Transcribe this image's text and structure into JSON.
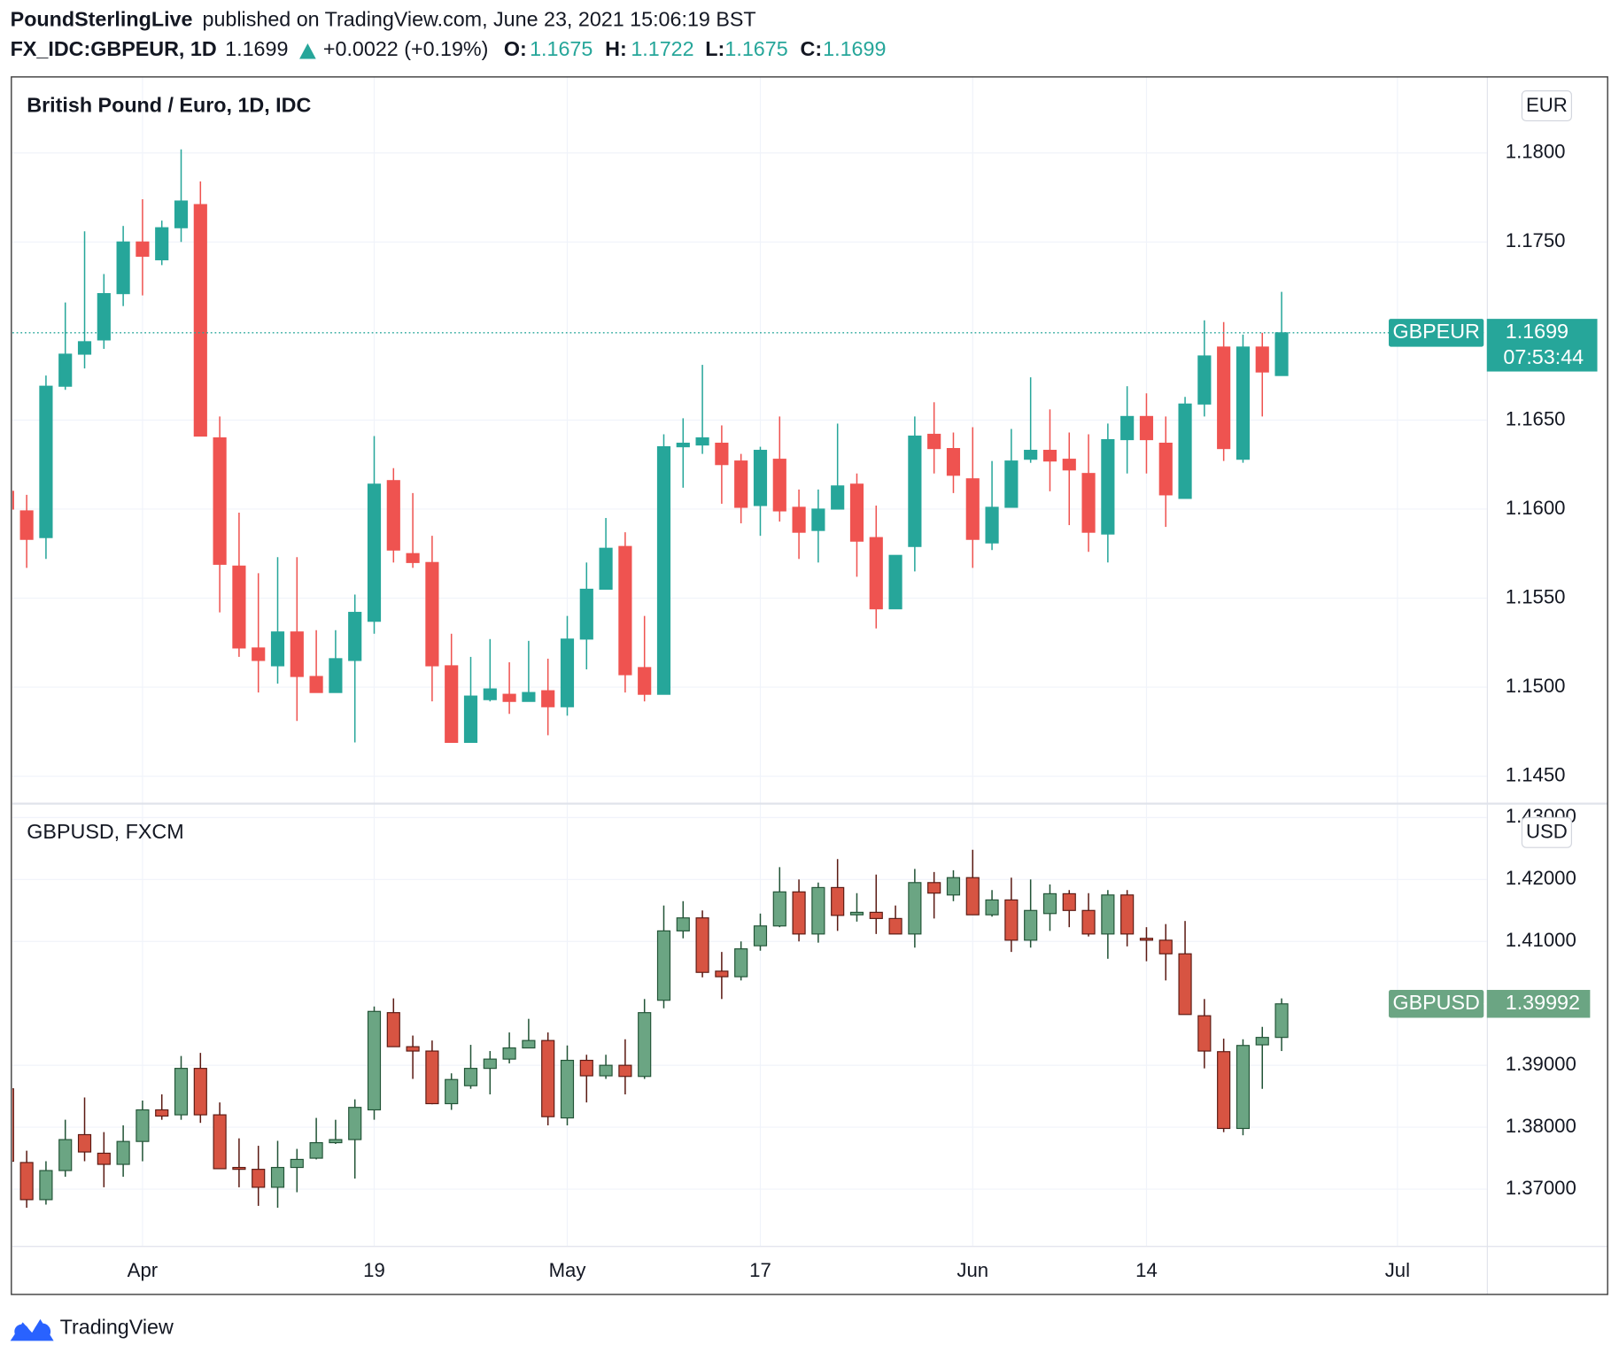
{
  "header": {
    "author": "PoundSterlingLive",
    "published": "published on TradingView.com, June 23, 2021 15:06:19 BST",
    "symbol": "FX_IDC:GBPEUR, 1D",
    "last": 1.1699,
    "change": "+0.0022 (+0.19%)",
    "ohlc": [
      {
        "label": "O:",
        "value": 1.1675
      },
      {
        "label": "H:",
        "value": 1.1722
      },
      {
        "label": "L:",
        "value": 1.1675
      },
      {
        "label": "C:",
        "value": 1.1699
      }
    ]
  },
  "chart_data": [
    {
      "type": "candlestick",
      "title": "British Pound / Euro, 1D, IDC",
      "currency": "EUR",
      "symbol": "GBPEUR",
      "last_value": 1.1699,
      "countdown": "07:53:44",
      "price_line": true,
      "grid": true,
      "up_color": "#26a69a",
      "down_color": "#ef5350",
      "border_up_color": "#26a69a",
      "border_down_color": "#ef5350",
      "xlim": [
        0.26,
        76.63
      ],
      "ylim": [
        1.14349,
        1.18424
      ],
      "yticks": [
        {
          "value": 1.145,
          "label": "1.1450"
        },
        {
          "value": 1.15,
          "label": "1.1500"
        },
        {
          "value": 1.155,
          "label": "1.1550"
        },
        {
          "value": 1.16,
          "label": "1.1600"
        },
        {
          "value": 1.165,
          "label": "1.1650"
        },
        {
          "value": 1.175,
          "label": "1.1750"
        },
        {
          "value": 1.18,
          "label": "1.1800"
        }
      ],
      "open": [
        1.161,
        1.1599,
        1.1584,
        1.1669,
        1.1687,
        1.1695,
        1.1721,
        1.175,
        1.174,
        1.1758,
        1.1771,
        1.164,
        1.1568,
        1.1522,
        1.1512,
        1.1531,
        1.1506,
        1.1497,
        1.1515,
        1.1537,
        1.1616,
        1.1575,
        1.157,
        1.1512,
        1.1469,
        1.1493,
        1.1496,
        1.1492,
        1.1498,
        1.1489,
        1.1527,
        1.1555,
        1.1579,
        1.1511,
        1.1496,
        1.1635,
        1.1636,
        1.1637,
        1.1627,
        1.1602,
        1.1628,
        1.1601,
        1.1588,
        1.16,
        1.1614,
        1.1584,
        1.1544,
        1.1579,
        1.1642,
        1.1634,
        1.1617,
        1.1581,
        1.1601,
        1.1628,
        1.1633,
        1.1628,
        1.162,
        1.1586,
        1.1639,
        1.1652,
        1.1637,
        1.1606,
        1.1659,
        1.1691,
        1.1628,
        1.1691,
        1.1675
      ],
      "high": [
        1.1615,
        1.1608,
        1.1675,
        1.1716,
        1.1756,
        1.1732,
        1.1759,
        1.1774,
        1.1762,
        1.1802,
        1.1784,
        1.1652,
        1.1598,
        1.1564,
        1.1573,
        1.1573,
        1.1532,
        1.1532,
        1.1552,
        1.1641,
        1.1623,
        1.1609,
        1.1585,
        1.153,
        1.1517,
        1.1527,
        1.1514,
        1.1526,
        1.1516,
        1.154,
        1.157,
        1.1595,
        1.1587,
        1.154,
        1.1642,
        1.1651,
        1.1681,
        1.1647,
        1.1631,
        1.1635,
        1.1652,
        1.1611,
        1.1611,
        1.1648,
        1.162,
        1.1602,
        1.1574,
        1.1652,
        1.166,
        1.1643,
        1.1646,
        1.1627,
        1.1645,
        1.1674,
        1.1656,
        1.1643,
        1.1642,
        1.1648,
        1.1669,
        1.1665,
        1.1652,
        1.1663,
        1.1706,
        1.1705,
        1.1698,
        1.1699,
        1.1722
      ],
      "low": [
        1.1595,
        1.1567,
        1.1572,
        1.1667,
        1.1679,
        1.169,
        1.1714,
        1.172,
        1.1737,
        1.175,
        1.1641,
        1.1542,
        1.1517,
        1.1497,
        1.1502,
        1.1481,
        1.1497,
        1.1497,
        1.1469,
        1.153,
        1.157,
        1.1567,
        1.1492,
        1.1469,
        1.1469,
        1.1492,
        1.1485,
        1.1492,
        1.1473,
        1.1484,
        1.151,
        1.1555,
        1.1497,
        1.1492,
        1.1496,
        1.1612,
        1.1631,
        1.1603,
        1.1592,
        1.1585,
        1.1593,
        1.1572,
        1.157,
        1.16,
        1.1562,
        1.1533,
        1.1544,
        1.1565,
        1.162,
        1.1609,
        1.1567,
        1.1577,
        1.1601,
        1.1626,
        1.161,
        1.1591,
        1.1576,
        1.157,
        1.162,
        1.162,
        1.159,
        1.1606,
        1.1652,
        1.1627,
        1.1626,
        1.1652,
        1.1675
      ],
      "close": [
        1.16,
        1.1583,
        1.1669,
        1.1687,
        1.1694,
        1.1721,
        1.175,
        1.1742,
        1.1758,
        1.1773,
        1.1641,
        1.1569,
        1.1522,
        1.1515,
        1.1531,
        1.1506,
        1.1497,
        1.1516,
        1.1542,
        1.1614,
        1.1577,
        1.157,
        1.1512,
        1.1469,
        1.1495,
        1.1499,
        1.1492,
        1.1497,
        1.1489,
        1.1527,
        1.1555,
        1.1578,
        1.1507,
        1.1496,
        1.1635,
        1.1637,
        1.164,
        1.1625,
        1.1601,
        1.1633,
        1.1599,
        1.1587,
        1.16,
        1.1613,
        1.1582,
        1.1544,
        1.1574,
        1.1641,
        1.1634,
        1.1619,
        1.1583,
        1.1601,
        1.1627,
        1.1633,
        1.1627,
        1.1622,
        1.1587,
        1.1639,
        1.1652,
        1.1639,
        1.1608,
        1.1659,
        1.1686,
        1.1634,
        1.1691,
        1.1677,
        1.1699
      ]
    },
    {
      "type": "candlestick",
      "title": "GBPUSD, FXCM",
      "currency": "USD",
      "symbol": "GBPUSD",
      "last_value": 1.39992,
      "price_line": false,
      "grid": true,
      "up_color": "#6ba583",
      "down_color": "#d75442",
      "border_up_color": "#225437",
      "border_down_color": "#5b1a13",
      "xlim": [
        0.26,
        76.63
      ],
      "ylim": [
        1.36083,
        1.43217
      ],
      "xticks": [
        {
          "value": 7,
          "label": "Apr"
        },
        {
          "value": 19,
          "label": "19"
        },
        {
          "value": 29,
          "label": "May"
        },
        {
          "value": 39,
          "label": "17"
        },
        {
          "value": 50,
          "label": "Jun"
        },
        {
          "value": 59,
          "label": "14"
        },
        {
          "value": 72,
          "label": "Jul"
        }
      ],
      "yticks": [
        {
          "value": 1.37,
          "label": "1.37000"
        },
        {
          "value": 1.38,
          "label": "1.38000"
        },
        {
          "value": 1.39,
          "label": "1.39000"
        },
        {
          "value": 1.41,
          "label": "1.41000"
        },
        {
          "value": 1.42,
          "label": "1.42000"
        },
        {
          "value": 1.43,
          "label": "1.43000"
        }
      ],
      "open": [
        1.3862,
        1.3743,
        1.3683,
        1.373,
        1.3788,
        1.3758,
        1.374,
        1.3777,
        1.3828,
        1.382,
        1.3895,
        1.382,
        1.3735,
        1.3732,
        1.3703,
        1.3735,
        1.375,
        1.3775,
        1.378,
        1.3828,
        1.3985,
        1.393,
        1.3923,
        1.3838,
        1.3867,
        1.3895,
        1.391,
        1.3928,
        1.394,
        1.3815,
        1.3908,
        1.3883,
        1.39,
        1.3882,
        1.4005,
        1.4117,
        1.4138,
        1.4052,
        1.4043,
        1.4093,
        1.4125,
        1.418,
        1.4112,
        1.4187,
        1.4143,
        1.4147,
        1.4137,
        1.4112,
        1.4195,
        1.4175,
        1.4203,
        1.4143,
        1.4167,
        1.4102,
        1.4145,
        1.4177,
        1.415,
        1.4112,
        1.4175,
        1.4105,
        1.4102,
        1.408,
        1.398,
        1.3922,
        1.3798,
        1.3933,
        1.3945
      ],
      "high": [
        1.3862,
        1.3762,
        1.3745,
        1.3812,
        1.3848,
        1.3792,
        1.3803,
        1.3843,
        1.3853,
        1.3915,
        1.392,
        1.384,
        1.3782,
        1.377,
        1.3778,
        1.3765,
        1.3815,
        1.3812,
        1.3845,
        1.3995,
        1.4008,
        1.3948,
        1.394,
        1.3887,
        1.3933,
        1.3923,
        1.3953,
        1.3975,
        1.3953,
        1.3932,
        1.3917,
        1.3917,
        1.3942,
        1.4007,
        1.4158,
        1.4165,
        1.415,
        1.4083,
        1.41,
        1.4145,
        1.422,
        1.42,
        1.4195,
        1.4233,
        1.4178,
        1.4208,
        1.4158,
        1.4217,
        1.4212,
        1.4215,
        1.4248,
        1.4183,
        1.4203,
        1.42,
        1.4192,
        1.4183,
        1.4178,
        1.4183,
        1.4183,
        1.4123,
        1.4128,
        1.4133,
        1.4007,
        1.3943,
        1.3942,
        1.3962,
        1.4008
      ],
      "low": [
        1.3745,
        1.367,
        1.3675,
        1.372,
        1.3745,
        1.3703,
        1.372,
        1.3745,
        1.3812,
        1.3812,
        1.3807,
        1.3733,
        1.3703,
        1.3673,
        1.367,
        1.3695,
        1.3748,
        1.3773,
        1.3717,
        1.3812,
        1.393,
        1.3878,
        1.3837,
        1.3828,
        1.3862,
        1.3853,
        1.3903,
        1.3928,
        1.3803,
        1.3803,
        1.384,
        1.3878,
        1.3853,
        1.3878,
        1.3992,
        1.4105,
        1.4042,
        1.4007,
        1.4037,
        1.4085,
        1.4123,
        1.41,
        1.4098,
        1.4117,
        1.4132,
        1.4112,
        1.4112,
        1.409,
        1.4137,
        1.4165,
        1.4143,
        1.414,
        1.4083,
        1.409,
        1.4117,
        1.4123,
        1.4108,
        1.4072,
        1.4092,
        1.4068,
        1.4037,
        1.3982,
        1.3895,
        1.3792,
        1.3787,
        1.3862,
        1.3923
      ],
      "close": [
        1.3745,
        1.3683,
        1.373,
        1.378,
        1.376,
        1.374,
        1.3777,
        1.3828,
        1.3818,
        1.3895,
        1.382,
        1.3733,
        1.3732,
        1.3703,
        1.3735,
        1.3748,
        1.3775,
        1.378,
        1.3832,
        1.3987,
        1.393,
        1.3923,
        1.3838,
        1.3877,
        1.3895,
        1.391,
        1.3928,
        1.394,
        1.3817,
        1.3908,
        1.3883,
        1.39,
        1.3882,
        1.3985,
        1.4117,
        1.4138,
        1.405,
        1.4043,
        1.4088,
        1.4125,
        1.418,
        1.4112,
        1.4187,
        1.4142,
        1.4147,
        1.4137,
        1.4112,
        1.4195,
        1.4178,
        1.4203,
        1.4143,
        1.4167,
        1.4102,
        1.415,
        1.4177,
        1.415,
        1.4112,
        1.4175,
        1.4112,
        1.4102,
        1.408,
        1.3982,
        1.3923,
        1.3798,
        1.3932,
        1.3945,
        1.39992
      ]
    }
  ],
  "footer": {
    "brand": "TradingView"
  }
}
